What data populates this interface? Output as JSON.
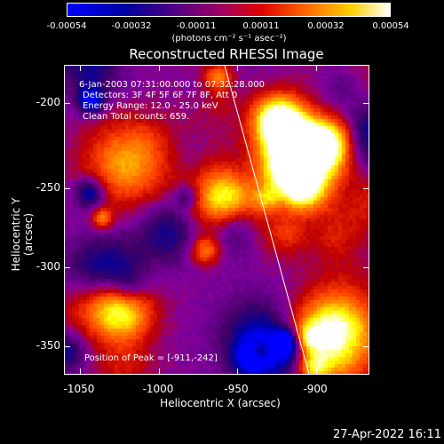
{
  "colorbar": {
    "ticks": [
      "-0.00054",
      "-0.00032",
      "-0.00011",
      "0.00011",
      "0.00032",
      "0.00054"
    ],
    "units": "(photons cm⁻² s⁻¹ asec⁻²)"
  },
  "chart_data": {
    "type": "heatmap",
    "title": "Reconstructed RHESSI Image",
    "xlabel": "Heliocentric X (arcsec)",
    "ylabel": "Heliocentric Y (arcsec)",
    "xlim": [
      -1065,
      -865
    ],
    "ylim": [
      -370,
      -170
    ],
    "x_ticks": [
      "-1050",
      "-1000",
      "-950",
      "-900"
    ],
    "y_ticks": [
      "-200",
      "-250",
      "-300",
      "-350"
    ],
    "value_range": [
      -0.00054,
      0.00054
    ],
    "colormap": [
      "#0000ff",
      "#0000a0",
      "#400060",
      "#8000a0",
      "#c00000",
      "#ff4000",
      "#ff9000",
      "#ffff00",
      "#ffffff"
    ],
    "peak_xy": [
      -911,
      -242
    ],
    "limb_line": true
  },
  "info": {
    "line1": "6-Jan-2003 07:31:00.000 to 07:32:28.000",
    "line2": "Detectors: 3F 4F 5F 6F 7F 8F, Att 0",
    "line3": "Energy Range: 12.0 - 25.0 keV",
    "line4": "Clean     Total counts: 659.",
    "peak": "Position of Peak = [-911,-242]"
  },
  "timestamp": "27-Apr-2022 16:11"
}
